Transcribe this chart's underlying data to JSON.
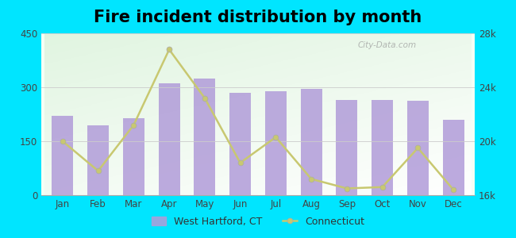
{
  "title": "Fire incident distribution by month",
  "months": [
    "Jan",
    "Feb",
    "Mar",
    "Apr",
    "May",
    "Jun",
    "Jul",
    "Aug",
    "Sep",
    "Oct",
    "Nov",
    "Dec"
  ],
  "west_hartford": [
    220,
    195,
    215,
    310,
    325,
    285,
    290,
    295,
    265,
    265,
    262,
    210
  ],
  "connecticut": [
    20000,
    17800,
    21200,
    26800,
    23200,
    18400,
    20300,
    17200,
    16500,
    16600,
    19500,
    16400
  ],
  "bar_color": "#b19cd9",
  "bar_alpha": 0.85,
  "line_color": "#c8c870",
  "line_marker": "o",
  "outer_bg": "#00e5ff",
  "plot_bg_color": "#e8f5e0",
  "left_ylim": [
    0,
    450
  ],
  "right_ylim": [
    16000,
    28000
  ],
  "left_yticks": [
    0,
    150,
    300,
    450
  ],
  "right_yticks": [
    16000,
    20000,
    24000,
    28000
  ],
  "right_yticklabels": [
    "16k",
    "20k",
    "24k",
    "28k"
  ],
  "legend_label_bar": "West Hartford, CT",
  "legend_label_line": "Connecticut",
  "title_fontsize": 15,
  "watermark": "City-Data.com"
}
